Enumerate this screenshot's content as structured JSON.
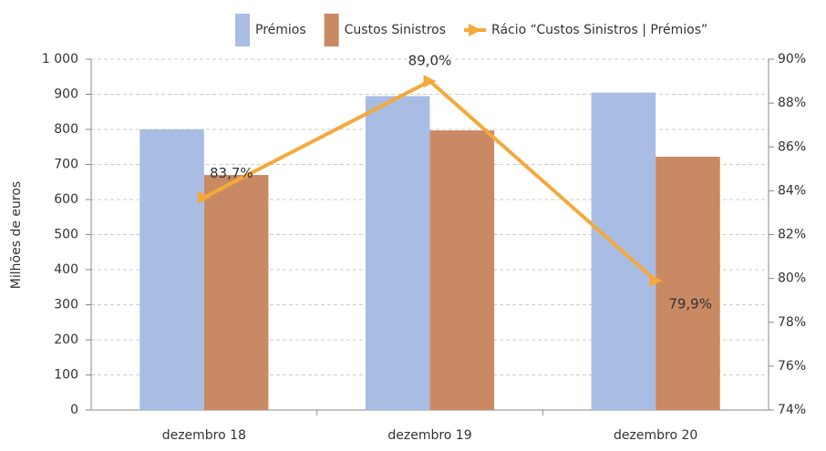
{
  "chart_data": {
    "type": "bar",
    "categories": [
      "dezembro 18",
      "dezembro 19",
      "dezembro 20"
    ],
    "ylabel": "Milhões de euros",
    "series": [
      {
        "name": "Prémios",
        "color": "#a9bde4",
        "values": [
          800,
          895,
          905
        ]
      },
      {
        "name": "Custos Sinistros",
        "color": "#c98a63",
        "values": [
          670,
          797,
          722
        ]
      },
      {
        "name": "Rácio “Custos Sinistros | Prémios”",
        "color": "#f4a93a",
        "type": "line",
        "axis": "y2",
        "values": [
          83.7,
          89.0,
          79.9
        ],
        "value_labels": [
          "83,7%",
          "89,0%",
          "79,9%"
        ]
      }
    ],
    "ylim": [
      0,
      1000
    ],
    "yticks": [
      0,
      100,
      200,
      300,
      400,
      500,
      600,
      700,
      800,
      900,
      {
        "value": 1000,
        "label": "1 000"
      }
    ],
    "y2lim": [
      74,
      90
    ],
    "y2ticks": [
      {
        "value": 74,
        "label": "74%"
      },
      {
        "value": 76,
        "label": "76%"
      },
      {
        "value": 78,
        "label": "78%"
      },
      {
        "value": 80,
        "label": "80%"
      },
      {
        "value": 82,
        "label": "82%"
      },
      {
        "value": 84,
        "label": "84%"
      },
      {
        "value": 86,
        "label": "86%"
      },
      {
        "value": 88,
        "label": "88%"
      },
      {
        "value": 90,
        "label": "90%"
      }
    ],
    "grid": true,
    "legend": "top"
  }
}
